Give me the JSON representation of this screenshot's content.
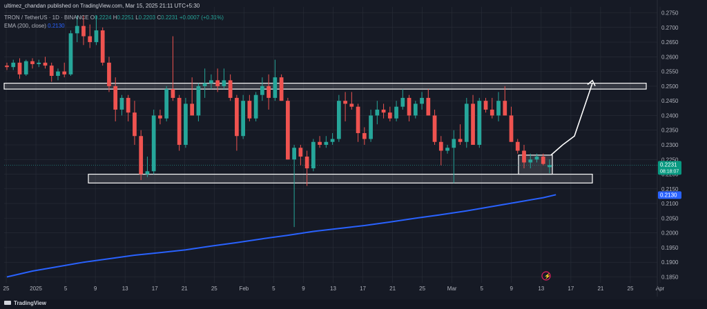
{
  "header": {
    "published": "ultimez_chandan published on TradingView.com, Mar 15, 2025 21:11 UTC+5:30",
    "symbol": "TRON / TetherUS · 1D · BINANCE",
    "o_label": "O",
    "o_value": "0.2224",
    "h_label": "H",
    "h_value": "0.2251",
    "l_label": "L",
    "l_value": "0.2203",
    "c_label": "C",
    "c_value": "0.2231",
    "change": "+0.0007 (+0.31%)",
    "ema_label": "EMA (200, close)",
    "ema_value": "0.2130"
  },
  "footer": {
    "brand": "TradingView"
  },
  "colors": {
    "up": "#26a69a",
    "down": "#ef5350",
    "ema": "#2962ff",
    "background": "#161a25",
    "grid": "#2a2e39",
    "zone": "#ffffff"
  },
  "chart_data": {
    "type": "candlestick",
    "title": "TRON / TetherUS · 1D · BINANCE",
    "ylim": [
      0.183,
      0.277
    ],
    "y_ticks": [
      "0.2750",
      "0.2700",
      "0.2650",
      "0.2600",
      "0.2550",
      "0.2500",
      "0.2450",
      "0.2400",
      "0.2350",
      "0.2300",
      "0.2250",
      "0.2200",
      "0.2150",
      "0.2100",
      "0.2050",
      "0.2000",
      "0.1950",
      "0.1900",
      "0.1850"
    ],
    "x_ticks": [
      "25",
      "2025",
      "5",
      "9",
      "13",
      "17",
      "21",
      "25",
      "Feb",
      "5",
      "9",
      "13",
      "17",
      "21",
      "25",
      "Mar",
      "5",
      "9",
      "13",
      "17",
      "21",
      "25",
      "Apr"
    ],
    "price_label": {
      "value": "0.2231",
      "countdown": "08:18:07"
    },
    "ema_label": "0.2130",
    "candles": [
      [
        0.257,
        0.258,
        0.2555,
        0.2565
      ],
      [
        0.2565,
        0.259,
        0.2555,
        0.258
      ],
      [
        0.258,
        0.2595,
        0.2525,
        0.254
      ],
      [
        0.254,
        0.259,
        0.2535,
        0.2585
      ],
      [
        0.2585,
        0.2595,
        0.256,
        0.2575
      ],
      [
        0.2575,
        0.259,
        0.2565,
        0.258
      ],
      [
        0.258,
        0.26,
        0.256,
        0.257
      ],
      [
        0.257,
        0.258,
        0.2515,
        0.2535
      ],
      [
        0.2535,
        0.256,
        0.252,
        0.255
      ],
      [
        0.255,
        0.258,
        0.253,
        0.254
      ],
      [
        0.254,
        0.269,
        0.2535,
        0.268
      ],
      [
        0.268,
        0.274,
        0.265,
        0.2705
      ],
      [
        0.2705,
        0.274,
        0.264,
        0.267
      ],
      [
        0.267,
        0.271,
        0.263,
        0.265
      ],
      [
        0.265,
        0.274,
        0.264,
        0.269
      ],
      [
        0.269,
        0.27,
        0.257,
        0.258
      ],
      [
        0.258,
        0.26,
        0.248,
        0.25
      ],
      [
        0.25,
        0.253,
        0.238,
        0.242
      ],
      [
        0.242,
        0.247,
        0.24,
        0.246
      ],
      [
        0.246,
        0.247,
        0.238,
        0.241
      ],
      [
        0.241,
        0.245,
        0.23,
        0.233
      ],
      [
        0.233,
        0.235,
        0.218,
        0.22
      ],
      [
        0.22,
        0.226,
        0.219,
        0.221
      ],
      [
        0.221,
        0.242,
        0.22,
        0.24
      ],
      [
        0.24,
        0.242,
        0.237,
        0.239
      ],
      [
        0.239,
        0.25,
        0.238,
        0.249
      ],
      [
        0.249,
        0.267,
        0.245,
        0.246
      ],
      [
        0.246,
        0.247,
        0.228,
        0.23
      ],
      [
        0.23,
        0.246,
        0.229,
        0.244
      ],
      [
        0.244,
        0.253,
        0.24,
        0.24
      ],
      [
        0.24,
        0.251,
        0.238,
        0.25
      ],
      [
        0.25,
        0.256,
        0.246,
        0.251
      ],
      [
        0.251,
        0.254,
        0.249,
        0.252
      ],
      [
        0.252,
        0.256,
        0.248,
        0.25
      ],
      [
        0.25,
        0.256,
        0.249,
        0.252
      ],
      [
        0.252,
        0.254,
        0.245,
        0.246
      ],
      [
        0.246,
        0.247,
        0.228,
        0.233
      ],
      [
        0.233,
        0.247,
        0.232,
        0.245
      ],
      [
        0.245,
        0.247,
        0.238,
        0.239
      ],
      [
        0.239,
        0.248,
        0.238,
        0.247
      ],
      [
        0.247,
        0.253,
        0.245,
        0.25
      ],
      [
        0.25,
        0.254,
        0.242,
        0.246
      ],
      [
        0.246,
        0.259,
        0.245,
        0.253
      ],
      [
        0.253,
        0.254,
        0.245,
        0.245
      ],
      [
        0.245,
        0.246,
        0.225,
        0.225
      ],
      [
        0.225,
        0.23,
        0.202,
        0.229
      ],
      [
        0.229,
        0.23,
        0.223,
        0.226
      ],
      [
        0.226,
        0.228,
        0.216,
        0.222
      ],
      [
        0.222,
        0.232,
        0.221,
        0.231
      ],
      [
        0.231,
        0.233,
        0.229,
        0.23
      ],
      [
        0.23,
        0.233,
        0.229,
        0.231
      ],
      [
        0.231,
        0.234,
        0.23,
        0.232
      ],
      [
        0.232,
        0.247,
        0.231,
        0.245
      ],
      [
        0.245,
        0.248,
        0.238,
        0.244
      ],
      [
        0.244,
        0.248,
        0.242,
        0.243
      ],
      [
        0.243,
        0.244,
        0.231,
        0.234
      ],
      [
        0.234,
        0.236,
        0.23,
        0.232
      ],
      [
        0.232,
        0.242,
        0.231,
        0.24
      ],
      [
        0.24,
        0.245,
        0.237,
        0.242
      ],
      [
        0.242,
        0.244,
        0.239,
        0.241
      ],
      [
        0.241,
        0.243,
        0.238,
        0.239
      ],
      [
        0.239,
        0.245,
        0.238,
        0.243
      ],
      [
        0.243,
        0.249,
        0.242,
        0.246
      ],
      [
        0.246,
        0.247,
        0.238,
        0.24
      ],
      [
        0.24,
        0.245,
        0.239,
        0.244
      ],
      [
        0.244,
        0.248,
        0.242,
        0.246
      ],
      [
        0.246,
        0.249,
        0.24,
        0.24
      ],
      [
        0.24,
        0.242,
        0.23,
        0.231
      ],
      [
        0.231,
        0.233,
        0.223,
        0.228
      ],
      [
        0.228,
        0.23,
        0.227,
        0.229
      ],
      [
        0.229,
        0.235,
        0.217,
        0.232
      ],
      [
        0.232,
        0.237,
        0.23,
        0.231
      ],
      [
        0.231,
        0.246,
        0.229,
        0.244
      ],
      [
        0.244,
        0.247,
        0.23,
        0.23
      ],
      [
        0.23,
        0.246,
        0.229,
        0.245
      ],
      [
        0.245,
        0.246,
        0.241,
        0.242
      ],
      [
        0.242,
        0.246,
        0.239,
        0.24
      ],
      [
        0.24,
        0.248,
        0.238,
        0.245
      ],
      [
        0.245,
        0.25,
        0.24,
        0.24
      ],
      [
        0.24,
        0.243,
        0.231,
        0.231
      ],
      [
        0.231,
        0.232,
        0.227,
        0.228
      ],
      [
        0.228,
        0.23,
        0.222,
        0.224
      ],
      [
        0.224,
        0.227,
        0.222,
        0.225
      ],
      [
        0.225,
        0.227,
        0.224,
        0.226
      ],
      [
        0.226,
        0.227,
        0.223,
        0.2235
      ],
      [
        0.2224,
        0.2251,
        0.2203,
        0.2231
      ]
    ],
    "ema": [
      [
        0,
        0.185
      ],
      [
        4,
        0.187
      ],
      [
        8,
        0.1885
      ],
      [
        12,
        0.19
      ],
      [
        16,
        0.1912
      ],
      [
        20,
        0.1924
      ],
      [
        24,
        0.1933
      ],
      [
        28,
        0.1942
      ],
      [
        32,
        0.1955
      ],
      [
        36,
        0.1967
      ],
      [
        40,
        0.198
      ],
      [
        44,
        0.1992
      ],
      [
        48,
        0.2005
      ],
      [
        52,
        0.2015
      ],
      [
        56,
        0.2025
      ],
      [
        60,
        0.2037
      ],
      [
        64,
        0.205
      ],
      [
        68,
        0.2062
      ],
      [
        72,
        0.2075
      ],
      [
        76,
        0.209
      ],
      [
        80,
        0.2105
      ],
      [
        84,
        0.212
      ],
      [
        86,
        0.213
      ]
    ],
    "zones": [
      {
        "from": 0.249,
        "to": 0.251
      },
      {
        "from": 0.217,
        "to": 0.22
      },
      {
        "from": 0.22,
        "to": 0.2265
      }
    ],
    "projection": [
      [
        0.2265,
        0.23
      ],
      [
        0.234,
        0.233
      ],
      [
        0.232,
        0.251
      ]
    ]
  }
}
